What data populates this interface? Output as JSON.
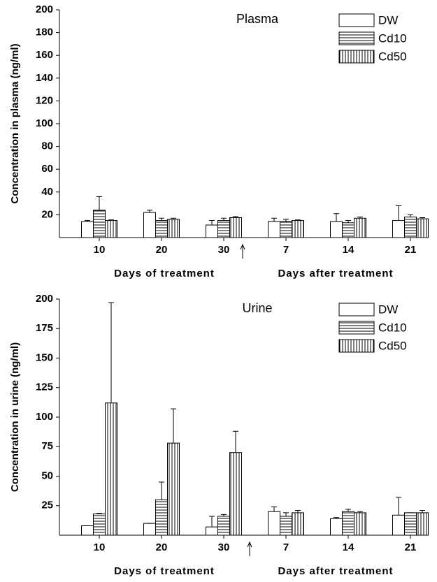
{
  "chart_data": [
    {
      "type": "bar",
      "title": "Plasma",
      "y_label": "Concentration in plasma (ng/ml)",
      "x_labels": [
        "Days of treatment",
        "Days after treatment"
      ],
      "categories": [
        "10",
        "20",
        "30",
        "7",
        "14",
        "21"
      ],
      "series": [
        {
          "name": "DW",
          "color": "#ffffff",
          "pattern": "none",
          "values": [
            14,
            22,
            11,
            14,
            14,
            15
          ],
          "errors": [
            1,
            2,
            4,
            3,
            7,
            13
          ]
        },
        {
          "name": "Cd10",
          "color": "#ffffff",
          "pattern": "horizontal",
          "values": [
            24,
            15,
            15,
            14,
            13,
            18
          ],
          "errors": [
            12,
            2,
            2,
            2,
            2,
            2
          ]
        },
        {
          "name": "Cd50",
          "color": "#ffffff",
          "pattern": "vertical",
          "values": [
            15,
            16,
            17.5,
            15,
            17,
            16.5
          ],
          "errors": [
            0.5,
            1,
            1,
            0.5,
            1,
            1
          ]
        }
      ],
      "ylim": [
        0,
        200
      ],
      "yticks": [
        20,
        40,
        60,
        80,
        100,
        120,
        140,
        160,
        180,
        200
      ],
      "legend": "upper right"
    },
    {
      "type": "bar",
      "title": "Urine",
      "y_label": "Concentration in urine (ng/ml)",
      "x_labels": [
        "Days of treatment",
        "Days after treatment"
      ],
      "categories": [
        "10",
        "20",
        "30",
        "7",
        "14",
        "21"
      ],
      "series": [
        {
          "name": "DW",
          "color": "#ffffff",
          "pattern": "none",
          "values": [
            8,
            10,
            7,
            20,
            14,
            17
          ],
          "errors": [
            0,
            0,
            9,
            4,
            1,
            15
          ]
        },
        {
          "name": "Cd10",
          "color": "#ffffff",
          "pattern": "horizontal",
          "values": [
            18,
            30,
            16,
            16,
            20,
            19
          ],
          "errors": [
            0.5,
            15,
            1.5,
            3,
            2,
            0
          ]
        },
        {
          "name": "Cd50",
          "color": "#ffffff",
          "pattern": "vertical",
          "values": [
            112,
            78,
            70,
            19,
            19,
            19
          ],
          "errors": [
            85,
            29,
            18,
            2,
            1,
            2
          ]
        }
      ],
      "ylim": [
        0,
        200
      ],
      "yticks": [
        25,
        50,
        75,
        100,
        125,
        150,
        175,
        200
      ],
      "legend": "upper right"
    }
  ]
}
